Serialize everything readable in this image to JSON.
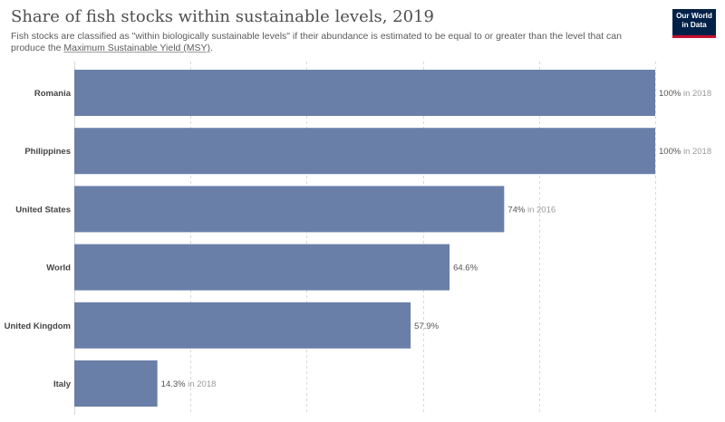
{
  "header": {
    "title": "Share of fish stocks within sustainable levels, 2019",
    "subtitle": "Fish stocks are classified as \"within biologically sustainable levels\" if their abundance is estimated to be equal to or greater than the level that can produce the ",
    "subtitle_link": "Maximum Sustainable Yield (MSY)",
    "subtitle_end": "."
  },
  "logo": {
    "line1": "Our World",
    "line2": "in Data"
  },
  "colors": {
    "bar": "#6a7fa8",
    "grid": "#d9d9d9",
    "logo_bg": "#002147",
    "logo_accent": "#c8102e"
  },
  "chart_data": {
    "type": "bar",
    "orientation": "horizontal",
    "categories": [
      "Romania",
      "Philippines",
      "United States",
      "World",
      "United Kingdom",
      "Italy"
    ],
    "values": [
      100,
      100,
      74,
      64.6,
      57.9,
      14.3
    ],
    "value_labels": [
      "100%",
      "100%",
      "74%",
      "64.6%",
      "57.9%",
      "14.3%"
    ],
    "value_notes": [
      "in 2018",
      "in 2018",
      "in 2016",
      "",
      "",
      "in 2018"
    ],
    "xlim": [
      0,
      100
    ],
    "grid": true
  }
}
